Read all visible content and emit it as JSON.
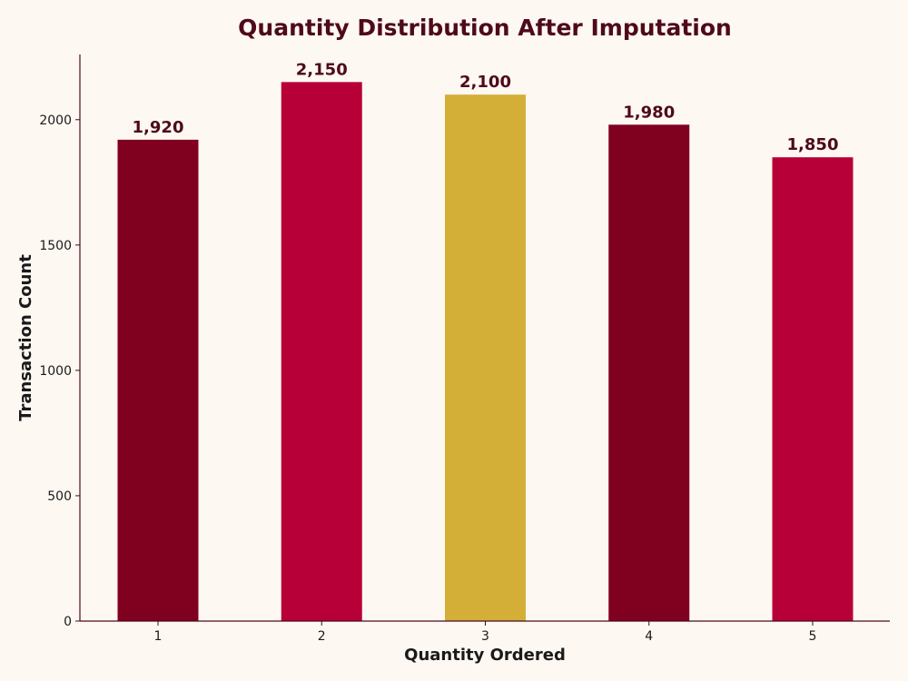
{
  "chart_data": {
    "type": "bar",
    "title": "Quantity Distribution After Imputation",
    "xlabel": "Quantity Ordered",
    "ylabel": "Transaction Count",
    "categories": [
      "1",
      "2",
      "3",
      "4",
      "5"
    ],
    "values": [
      1920,
      2150,
      2100,
      1980,
      1850
    ],
    "value_labels": [
      "1,920",
      "2,150",
      "2,100",
      "1,980",
      "1,850"
    ],
    "bar_colors": [
      "#800020",
      "#B70038",
      "#D4AF37",
      "#800020",
      "#B70038"
    ],
    "ylim": [
      0,
      2260
    ],
    "yticks": [
      0,
      500,
      1000,
      1500,
      2000
    ],
    "grid": false,
    "legend": "none"
  },
  "colors": {
    "background": "#FEF8F2",
    "title": "#4E0A1C",
    "axis": "#4E0A1C",
    "text": "#1A1A1A"
  }
}
